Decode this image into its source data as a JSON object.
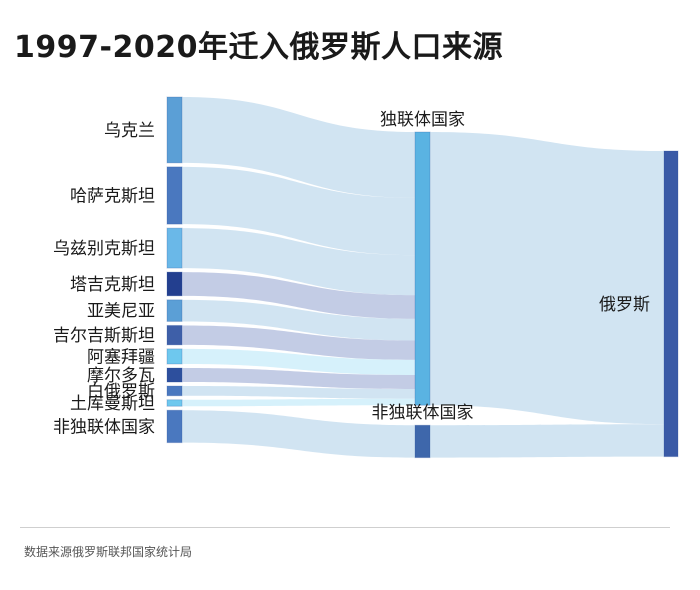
{
  "title": "1997-2020年迁入俄罗斯人口来源",
  "source": "数据来源俄罗斯联邦国家统计局",
  "colors": {
    "link": "#c9dff0",
    "link_alt": "#b8c3e0",
    "link_light": "#cfeefa",
    "mid_node": "#5ab3e2",
    "mid_node_other": "#3e67ab",
    "target_node": "#3a5aa6"
  },
  "chart_data": {
    "type": "sankey",
    "nodes": [
      {
        "id": "ukraine",
        "label": "乌克兰",
        "column": 0,
        "color": "#5b9fd6"
      },
      {
        "id": "kazakhstan",
        "label": "哈萨克斯坦",
        "column": 0,
        "color": "#4a78bf"
      },
      {
        "id": "uzbekistan",
        "label": "乌兹别克斯坦",
        "column": 0,
        "color": "#6ab8e8"
      },
      {
        "id": "tajikistan",
        "label": "塔吉克斯坦",
        "column": 0,
        "color": "#233f8f"
      },
      {
        "id": "armenia",
        "label": "亚美尼亚",
        "column": 0,
        "color": "#5b9fd6"
      },
      {
        "id": "kyrgyzstan",
        "label": "吉尔吉斯斯坦",
        "column": 0,
        "color": "#3e5fa8"
      },
      {
        "id": "azerbaijan",
        "label": "阿塞拜疆",
        "column": 0,
        "color": "#6ec8ee"
      },
      {
        "id": "moldova",
        "label": "摩尔多瓦",
        "column": 0,
        "color": "#2d4f9d"
      },
      {
        "id": "belarus",
        "label": "白俄罗斯",
        "column": 0,
        "color": "#4a78bf"
      },
      {
        "id": "turkmenistan",
        "label": "土库曼斯坦",
        "column": 0,
        "color": "#6ec8ee"
      },
      {
        "id": "non_cis_src",
        "label": "非独联体国家",
        "column": 0,
        "color": "#4a78bf"
      },
      {
        "id": "cis",
        "label": "独联体国家",
        "column": 1,
        "color": "#5ab3e2"
      },
      {
        "id": "non_cis",
        "label": "非独联体国家",
        "column": 1,
        "color": "#3e67ab"
      },
      {
        "id": "russia",
        "label": "俄罗斯",
        "column": 2,
        "color": "#3a5aa6"
      }
    ],
    "links": [
      {
        "source": "ukraine",
        "target": "cis",
        "value": 61
      },
      {
        "source": "kazakhstan",
        "target": "cis",
        "value": 53
      },
      {
        "source": "uzbekistan",
        "target": "cis",
        "value": 37
      },
      {
        "source": "tajikistan",
        "target": "cis",
        "value": 22
      },
      {
        "source": "armenia",
        "target": "cis",
        "value": 20
      },
      {
        "source": "kyrgyzstan",
        "target": "cis",
        "value": 18
      },
      {
        "source": "azerbaijan",
        "target": "cis",
        "value": 14
      },
      {
        "source": "moldova",
        "target": "cis",
        "value": 13
      },
      {
        "source": "belarus",
        "target": "cis",
        "value": 9
      },
      {
        "source": "turkmenistan",
        "target": "cis",
        "value": 6
      },
      {
        "source": "non_cis_src",
        "target": "non_cis",
        "value": 30
      },
      {
        "source": "cis",
        "target": "russia",
        "value": 253
      },
      {
        "source": "non_cis",
        "target": "russia",
        "value": 30
      }
    ]
  }
}
